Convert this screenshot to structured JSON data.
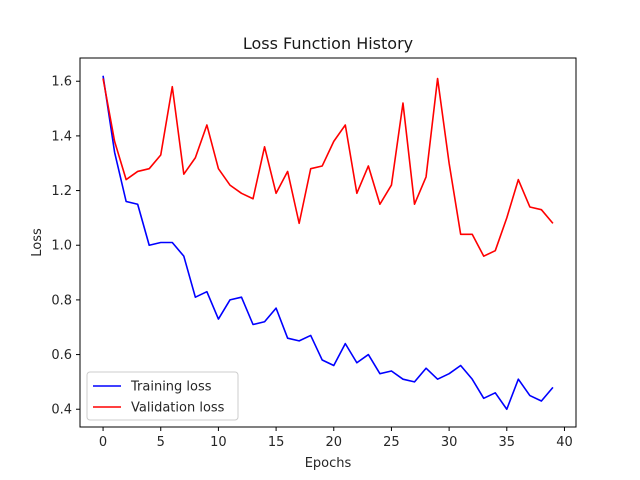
{
  "chart_data": {
    "type": "line",
    "title": "Loss Function History",
    "xlabel": "Epochs",
    "ylabel": "Loss",
    "xlim": [
      -2,
      41
    ],
    "ylim": [
      0.335,
      1.685
    ],
    "xticks": [
      0,
      5,
      10,
      15,
      20,
      25,
      30,
      35,
      40
    ],
    "yticks": [
      0.4,
      0.6,
      0.8,
      1.0,
      1.2,
      1.4,
      1.6
    ],
    "ytick_labels": [
      "0.4",
      "0.6",
      "0.8",
      "1.0",
      "1.2",
      "1.4",
      "1.6"
    ],
    "grid": false,
    "legend_position": "lower-left",
    "x": [
      0,
      1,
      2,
      3,
      4,
      5,
      6,
      7,
      8,
      9,
      10,
      11,
      12,
      13,
      14,
      15,
      16,
      17,
      18,
      19,
      20,
      21,
      22,
      23,
      24,
      25,
      26,
      27,
      28,
      29,
      30,
      31,
      32,
      33,
      34,
      35,
      36,
      37,
      38,
      39
    ],
    "series": [
      {
        "name": "Training loss",
        "color": "#0000ff",
        "values": [
          1.62,
          1.34,
          1.16,
          1.15,
          1.0,
          1.01,
          1.01,
          0.96,
          0.81,
          0.83,
          0.73,
          0.8,
          0.81,
          0.71,
          0.72,
          0.77,
          0.66,
          0.65,
          0.67,
          0.58,
          0.56,
          0.64,
          0.57,
          0.6,
          0.53,
          0.54,
          0.51,
          0.5,
          0.55,
          0.51,
          0.53,
          0.56,
          0.51,
          0.44,
          0.46,
          0.4,
          0.51,
          0.45,
          0.43,
          0.48
        ]
      },
      {
        "name": "Validation loss",
        "color": "#ff0000",
        "values": [
          1.61,
          1.38,
          1.24,
          1.27,
          1.28,
          1.33,
          1.58,
          1.26,
          1.32,
          1.44,
          1.28,
          1.22,
          1.19,
          1.17,
          1.36,
          1.19,
          1.27,
          1.08,
          1.28,
          1.29,
          1.38,
          1.44,
          1.19,
          1.29,
          1.15,
          1.22,
          1.52,
          1.15,
          1.25,
          1.61,
          1.3,
          1.04,
          1.04,
          0.96,
          0.98,
          1.1,
          1.24,
          1.14,
          1.13,
          1.08
        ]
      }
    ]
  }
}
